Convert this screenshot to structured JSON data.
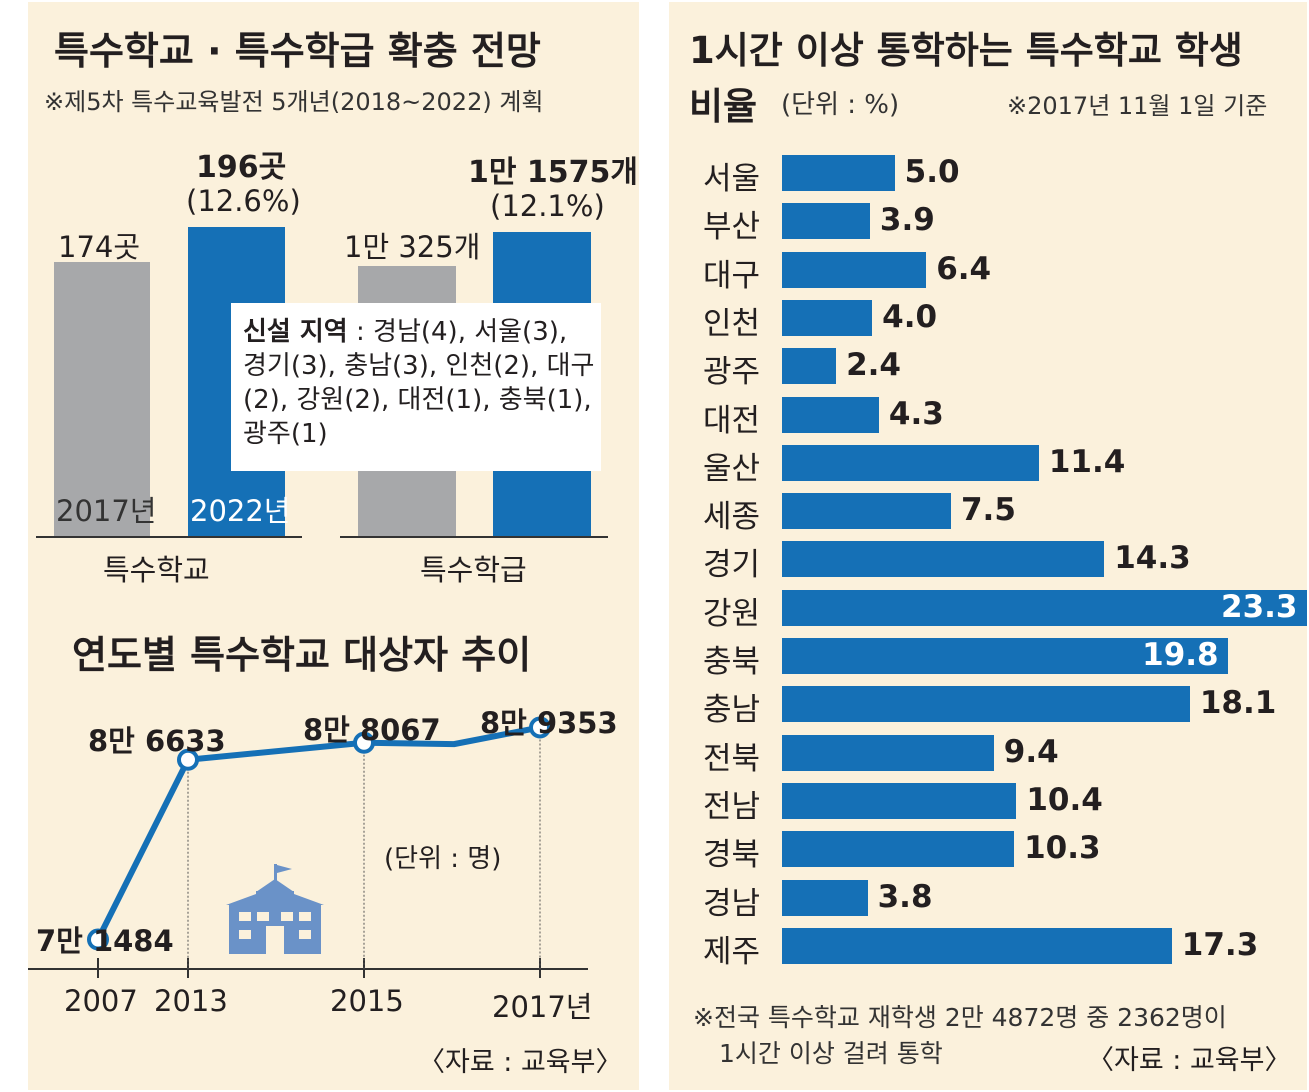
{
  "left": {
    "expansion": {
      "title": "특수학교 · 특수학급 확충 전망",
      "subtitle": "※제5차 특수교육발전 5개년(2018~2022) 계획",
      "school_2017_value": "174곳",
      "school_2022_value": "196곳",
      "school_2022_pct": "(12.6%)",
      "class_2017_value": "1만 325개",
      "class_2022_value": "1만 1575개",
      "class_2022_pct": "(12.1%)",
      "year_2017": "2017년",
      "year_2022": "2022년",
      "group_school": "특수학교",
      "group_class": "특수학급",
      "new_regions_label": "신설 지역",
      "new_regions_text": " : 경남(4), 서울(3), 경기(3), 충남(3), 인천(2), 대구(2), 강원(2), 대전(1), 충북(1), 광주(1)"
    },
    "trend": {
      "title": "연도별 특수학교 대상자 추이",
      "unit": "(단위 : 명)",
      "source": "〈자료 : 교육부〉",
      "point_labels": [
        "7만 1484",
        "8만 6633",
        "8만 8067",
        "8만 9353"
      ],
      "year_labels": [
        "2007",
        "2013",
        "2015",
        "2017년"
      ]
    }
  },
  "right": {
    "title_line1": "1시간 이상 통학하는 특수학교 학생",
    "title_line2": "비율",
    "unit": "(단위 : %)",
    "date_note": "※2017년 11월 1일 기준",
    "footnote_line1": "※전국 특수학교 재학생 2만 4872명 중 2362명이",
    "footnote_line2": "1시간 이상 걸려 통학",
    "source": "〈자료 : 교육부〉"
  },
  "colors": {
    "blue": "#1570b6",
    "gray": "#a7a8aa",
    "panel_bg": "#fbf1dc",
    "icon": "#6a92c8"
  },
  "icons": [
    "school-icon"
  ],
  "chart_data": [
    {
      "type": "bar",
      "title": "특수학교 · 특수학급 확충 전망",
      "subtitle": "※제5차 특수교육발전 5개년(2018~2022) 계획",
      "categories": [
        "특수학교",
        "특수학급"
      ],
      "series": [
        {
          "name": "2017년",
          "values": [
            174,
            10325
          ],
          "labels": [
            "174곳",
            "1만 325개"
          ]
        },
        {
          "name": "2022년",
          "values": [
            196,
            11575
          ],
          "labels": [
            "196곳",
            "1만 1575개"
          ],
          "growth": [
            "(12.6%)",
            "(12.1%)"
          ]
        }
      ]
    },
    {
      "type": "line",
      "title": "연도별 특수학교 대상자 추이",
      "x": [
        "2007",
        "2013",
        "2015",
        "2017"
      ],
      "y": [
        71484,
        86633,
        88067,
        89353
      ],
      "ylim": [
        69000,
        91500
      ],
      "ylabel": "(단위 : 명)",
      "extra_point_2016": 87950
    },
    {
      "type": "bar",
      "orientation": "horizontal",
      "title": "1시간 이상 통학하는 특수학교 학생 비율",
      "ylabel": "(단위 : %)",
      "categories": [
        "서울",
        "부산",
        "대구",
        "인천",
        "광주",
        "대전",
        "울산",
        "세종",
        "경기",
        "강원",
        "충북",
        "충남",
        "전북",
        "전남",
        "경북",
        "경남",
        "제주"
      ],
      "values": [
        5.0,
        3.9,
        6.4,
        4.0,
        2.4,
        4.3,
        11.4,
        7.5,
        14.3,
        23.3,
        19.8,
        18.1,
        9.4,
        10.4,
        10.3,
        3.8,
        17.3
      ],
      "value_labels": [
        "5.0",
        "3.9",
        "6.4",
        "4.0",
        "2.4",
        "4.3",
        "11.4",
        "7.5",
        "14.3",
        "23.3",
        "19.8",
        "18.1",
        "9.4",
        "10.4",
        "10.3",
        "3.8",
        "17.3"
      ],
      "xlim": [
        0,
        23.3
      ]
    }
  ]
}
